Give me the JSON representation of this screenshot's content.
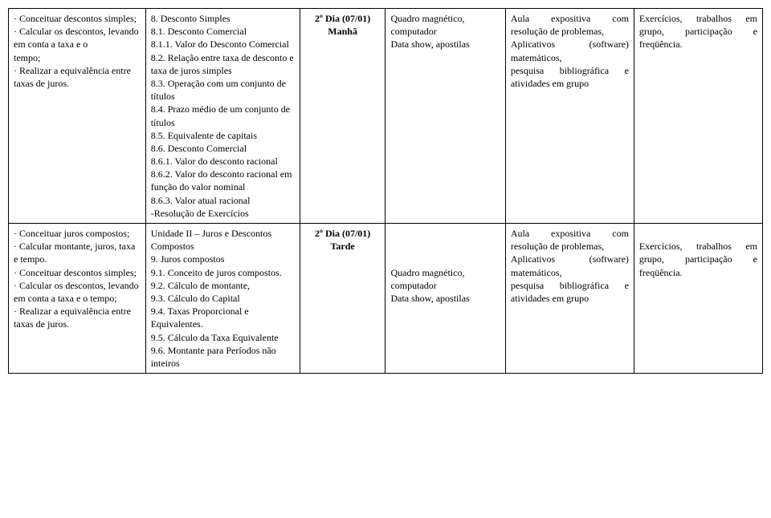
{
  "rows": [
    {
      "col1": "· Conceituar descontos simples;\n· Calcular os descontos, levando em conta a taxa e o\ntempo;\n· Realizar a equivalência entre\ntaxas de juros.",
      "col2": "8. Desconto Simples\n8.1. Desconto Comercial\n8.1.1. Valor do Desconto Comercial\n8.2. Relação entre taxa de desconto e taxa de juros simples\n8.3. Operação com um conjunto de títulos\n8.4. Prazo médio de um conjunto de títulos\n8.5. Equivalente de capitais\n8.6. Desconto Comercial\n8.6.1. Valor do desconto racional\n8.6.2. Valor do desconto racional em função do valor nominal\n8.6.3. Valor atual racional\n-Resolução de Exercícios",
      "col3_line1": "2º Dia (07/01)",
      "col3_line2": "Manhã",
      "col4": "Quadro magnético, computador\nData show, apostilas",
      "col5": "Aula expositiva com resolução de problemas,\nAplicativos (software) matemáticos,\npesquisa bibliográfica e atividades em grupo",
      "col6": "Exercícios, trabalhos em grupo, participação e freqüência."
    },
    {
      "col1": "· Conceituar juros compostos;\n· Calcular montante, juros, taxa\ne tempo.\n· Conceituar descontos simples;\n· Calcular os descontos, levando em conta a taxa e o tempo;\n· Realizar a equivalência entre taxas de juros.",
      "col2": "Unidade II – Juros e Descontos Compostos\n9. Juros compostos\n9.1. Conceito de juros compostos.\n9.2. Cálculo de montante,\n9.3. Cálculo do Capital\n9.4. Taxas Proporcional e Equivalentes.\n9.5. Cálculo da Taxa Equivalente\n9.6. Montante para Períodos não inteiros",
      "col3_line1": "2º Dia (07/01)",
      "col3_line2": "Tarde",
      "col4": "Quadro magnético, computador\nData show, apostilas",
      "col5": "Aula expositiva com resolução de problemas,\nAplicativos (software) matemáticos,\npesquisa bibliográfica e atividades em grupo",
      "col6": "Exercícios, trabalhos em grupo, participação e freqüência."
    }
  ]
}
